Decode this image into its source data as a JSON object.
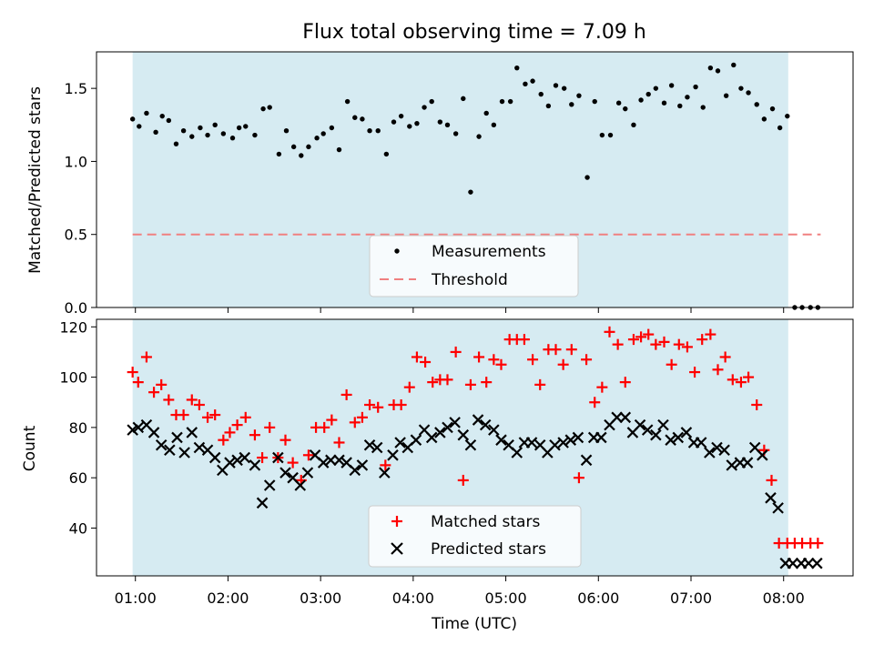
{
  "chart_data": [
    {
      "type": "scatter",
      "title": "Flux total observing time = 7.09 h",
      "xlabel": "",
      "ylabel": "Matched/Predicted stars",
      "xlim": [
        0.58,
        8.75
      ],
      "ylim": [
        0.0,
        1.75
      ],
      "yticks": [
        0.0,
        0.5,
        1.0,
        1.5
      ],
      "ytick_labels": [
        "0.0",
        "0.5",
        "1.0",
        "1.5"
      ],
      "shaded_interval": [
        0.97,
        8.05
      ],
      "threshold": {
        "name": "Threshold",
        "value": 0.5,
        "x_range": [
          0.97,
          8.4
        ],
        "color": "#f08080"
      },
      "legend_position": "lower center",
      "series": [
        {
          "name": "Measurements",
          "color": "#000000",
          "x": [
            0.97,
            1.04,
            1.12,
            1.22,
            1.29,
            1.36,
            1.44,
            1.52,
            1.61,
            1.7,
            1.78,
            1.86,
            1.95,
            2.05,
            2.12,
            2.19,
            2.29,
            2.38,
            2.45,
            2.55,
            2.63,
            2.71,
            2.79,
            2.87,
            2.96,
            3.03,
            3.12,
            3.2,
            3.29,
            3.37,
            3.45,
            3.53,
            3.62,
            3.71,
            3.79,
            3.87,
            3.96,
            4.04,
            4.12,
            4.2,
            4.29,
            4.37,
            4.46,
            4.54,
            4.62,
            4.71,
            4.79,
            4.87,
            4.96,
            5.05,
            5.12,
            5.21,
            5.29,
            5.38,
            5.46,
            5.54,
            5.63,
            5.71,
            5.79,
            5.88,
            5.96,
            6.04,
            6.13,
            6.22,
            6.29,
            6.38,
            6.46,
            6.54,
            6.62,
            6.71,
            6.79,
            6.88,
            6.96,
            7.05,
            7.13,
            7.21,
            7.29,
            7.38,
            7.46,
            7.54,
            7.62,
            7.71,
            7.79,
            7.88,
            7.96,
            8.04,
            8.12,
            8.2,
            8.29,
            8.37
          ],
          "y": [
            1.29,
            1.24,
            1.33,
            1.2,
            1.31,
            1.28,
            1.12,
            1.21,
            1.17,
            1.23,
            1.18,
            1.25,
            1.19,
            1.16,
            1.23,
            1.24,
            1.18,
            1.36,
            1.37,
            1.05,
            1.21,
            1.1,
            1.04,
            1.1,
            1.16,
            1.19,
            1.23,
            1.08,
            1.41,
            1.3,
            1.29,
            1.21,
            1.21,
            1.05,
            1.27,
            1.31,
            1.24,
            1.26,
            1.37,
            1.41,
            1.27,
            1.25,
            1.19,
            1.43,
            0.79,
            1.17,
            1.33,
            1.25,
            1.41,
            1.41,
            1.64,
            1.53,
            1.55,
            1.46,
            1.38,
            1.52,
            1.5,
            1.39,
            1.45,
            0.89,
            1.41,
            1.18,
            1.18,
            1.4,
            1.36,
            1.25,
            1.42,
            1.46,
            1.5,
            1.4,
            1.52,
            1.38,
            1.44,
            1.51,
            1.37,
            1.64,
            1.62,
            1.45,
            1.66,
            1.5,
            1.47,
            1.39,
            1.29,
            1.36,
            1.23,
            1.31,
            0.0,
            0.0,
            0.0,
            0.0
          ]
        }
      ]
    },
    {
      "type": "scatter",
      "title": "",
      "xlabel": "Time (UTC)",
      "ylabel": "Count",
      "xlim": [
        0.58,
        8.75
      ],
      "ylim": [
        21,
        123
      ],
      "yticks": [
        40,
        60,
        80,
        100,
        120
      ],
      "ytick_labels": [
        "40",
        "60",
        "80",
        "100",
        "120"
      ],
      "xticks": [
        1,
        2,
        3,
        4,
        5,
        6,
        7,
        8
      ],
      "xtick_labels": [
        "01:00",
        "02:00",
        "03:00",
        "04:00",
        "05:00",
        "06:00",
        "07:00",
        "08:00"
      ],
      "shaded_interval": [
        0.97,
        8.05
      ],
      "legend_position": "lower center",
      "series": [
        {
          "name": "Matched stars",
          "marker": "+",
          "color": "#ff0000",
          "x": [
            0.97,
            1.03,
            1.12,
            1.2,
            1.28,
            1.36,
            1.44,
            1.52,
            1.61,
            1.69,
            1.78,
            1.86,
            1.95,
            2.02,
            2.1,
            2.19,
            2.29,
            2.37,
            2.45,
            2.54,
            2.62,
            2.7,
            2.79,
            2.87,
            2.95,
            3.04,
            3.12,
            3.2,
            3.28,
            3.37,
            3.45,
            3.53,
            3.62,
            3.7,
            3.79,
            3.87,
            3.96,
            4.04,
            4.13,
            4.21,
            4.29,
            4.37,
            4.46,
            4.54,
            4.62,
            4.71,
            4.79,
            4.87,
            4.95,
            5.04,
            5.12,
            5.2,
            5.29,
            5.37,
            5.46,
            5.54,
            5.62,
            5.71,
            5.79,
            5.87,
            5.96,
            6.04,
            6.12,
            6.21,
            6.29,
            6.38,
            6.46,
            6.54,
            6.62,
            6.71,
            6.79,
            6.87,
            6.96,
            7.04,
            7.12,
            7.21,
            7.29,
            7.37,
            7.45,
            7.54,
            7.62,
            7.71,
            7.79,
            7.87,
            7.95,
            8.04,
            8.12,
            8.2,
            8.29,
            8.37
          ],
          "y": [
            102,
            98,
            108,
            94,
            97,
            91,
            85,
            85,
            91,
            89,
            84,
            85,
            75,
            78,
            81,
            84,
            77,
            68,
            80,
            68,
            75,
            66,
            59,
            69,
            80,
            80,
            83,
            74,
            93,
            82,
            84,
            89,
            88,
            65,
            89,
            89,
            96,
            108,
            106,
            98,
            99,
            99,
            110,
            59,
            97,
            108,
            98,
            107,
            105,
            115,
            115,
            115,
            107,
            97,
            111,
            111,
            105,
            111,
            60,
            107,
            90,
            96,
            118,
            113,
            98,
            115,
            116,
            117,
            113,
            114,
            105,
            113,
            112,
            102,
            115,
            117,
            103,
            108,
            99,
            98,
            100,
            89,
            71,
            59,
            34,
            34,
            34,
            34,
            34,
            34
          ]
        },
        {
          "name": "Predicted stars",
          "marker": "x",
          "color": "#000000",
          "x": [
            0.97,
            1.03,
            1.12,
            1.2,
            1.28,
            1.37,
            1.45,
            1.53,
            1.61,
            1.69,
            1.78,
            1.86,
            1.94,
            2.02,
            2.1,
            2.18,
            2.29,
            2.37,
            2.45,
            2.54,
            2.62,
            2.7,
            2.78,
            2.86,
            2.94,
            3.03,
            3.11,
            3.2,
            3.28,
            3.37,
            3.45,
            3.53,
            3.61,
            3.69,
            3.78,
            3.86,
            3.94,
            4.03,
            4.12,
            4.2,
            4.29,
            4.37,
            4.45,
            4.54,
            4.62,
            4.7,
            4.78,
            4.87,
            4.95,
            5.03,
            5.12,
            5.2,
            5.28,
            5.37,
            5.45,
            5.53,
            5.62,
            5.7,
            5.78,
            5.87,
            5.95,
            6.03,
            6.12,
            6.2,
            6.29,
            6.37,
            6.45,
            6.53,
            6.62,
            6.7,
            6.78,
            6.86,
            6.95,
            7.03,
            7.11,
            7.2,
            7.28,
            7.36,
            7.44,
            7.53,
            7.61,
            7.69,
            7.77,
            7.86,
            7.94,
            8.02,
            8.1,
            8.19,
            8.27,
            8.36
          ],
          "y": [
            79,
            80,
            81,
            78,
            73,
            71,
            76,
            70,
            78,
            72,
            71,
            68,
            63,
            66,
            67,
            68,
            65,
            50,
            57,
            68,
            62,
            60,
            57,
            62,
            69,
            66,
            67,
            67,
            66,
            63,
            65,
            73,
            72,
            62,
            69,
            74,
            72,
            75,
            79,
            76,
            78,
            80,
            82,
            77,
            73,
            83,
            81,
            79,
            75,
            73,
            70,
            74,
            74,
            73,
            70,
            73,
            74,
            75,
            76,
            67,
            76,
            76,
            81,
            84,
            84,
            78,
            81,
            79,
            77,
            81,
            75,
            76,
            78,
            74,
            74,
            70,
            72,
            71,
            65,
            66,
            66,
            72,
            69,
            52,
            48,
            26,
            26,
            26,
            26,
            26
          ]
        }
      ]
    }
  ]
}
